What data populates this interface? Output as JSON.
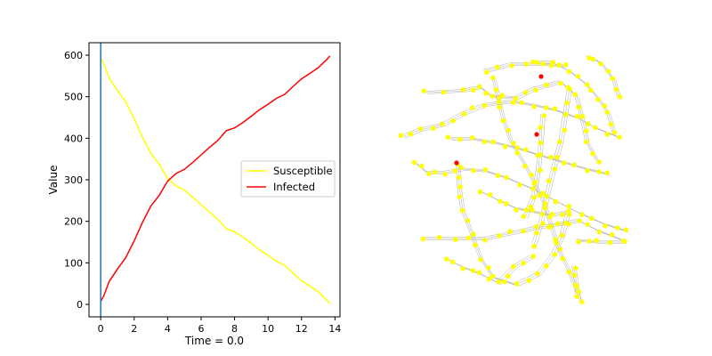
{
  "chart_data": [
    {
      "type": "line",
      "title": "",
      "xlabel": "Time = 0.0",
      "ylabel": "Value",
      "xlim": [
        -0.7,
        14.3
      ],
      "ylim": [
        -30,
        630
      ],
      "xticks": [
        0,
        2,
        4,
        6,
        8,
        10,
        12,
        14
      ],
      "yticks": [
        0,
        100,
        200,
        300,
        400,
        500,
        600
      ],
      "grid": false,
      "legend": "center-right",
      "time_marker": 0.0,
      "colors": {
        "Susceptible": "#ffff00",
        "Infected": "#ff0000",
        "marker": "#1f77b4"
      },
      "series": [
        {
          "name": "Susceptible",
          "x": [
            0,
            0.2,
            0.5,
            1.0,
            1.5,
            2.0,
            2.5,
            3.0,
            3.5,
            4.0,
            4.5,
            5.0,
            5.5,
            6.0,
            6.5,
            7.0,
            7.5,
            8.0,
            8.5,
            9.0,
            9.5,
            10.0,
            10.5,
            11.0,
            11.5,
            12.0,
            12.5,
            13.0,
            13.5,
            13.7
          ],
          "y": [
            593,
            578,
            545,
            515,
            487,
            447,
            402,
            363,
            337,
            303,
            285,
            275,
            258,
            240,
            222,
            205,
            182,
            175,
            162,
            147,
            131,
            118,
            104,
            94,
            75,
            57,
            44,
            30,
            11,
            2
          ]
        },
        {
          "name": "Infected",
          "x": [
            0,
            0.2,
            0.5,
            1.0,
            1.5,
            2.0,
            2.5,
            3.0,
            3.5,
            4.0,
            4.5,
            5.0,
            5.5,
            6.0,
            6.5,
            7.0,
            7.5,
            8.0,
            8.5,
            9.0,
            9.5,
            10.0,
            10.5,
            11.0,
            11.5,
            12.0,
            12.5,
            13.0,
            13.5,
            13.7
          ],
          "y": [
            7,
            22,
            55,
            85,
            113,
            153,
            198,
            237,
            263,
            297,
            315,
            325,
            342,
            360,
            378,
            395,
            418,
            425,
            438,
            453,
            469,
            482,
            496,
            506,
            525,
            543,
            556,
            570,
            589,
            598
          ]
        }
      ]
    },
    {
      "type": "network",
      "colors": {
        "susceptible": "#ffff00",
        "infected": "#ff0000",
        "edge": "#b0b0b0"
      }
    }
  ]
}
